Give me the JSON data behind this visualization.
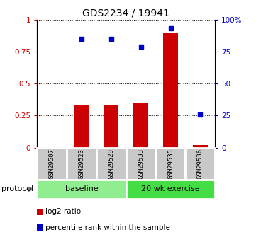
{
  "title": "GDS2234 / 19941",
  "samples": [
    "GSM29507",
    "GSM29523",
    "GSM29529",
    "GSM29533",
    "GSM29535",
    "GSM29536"
  ],
  "log2_ratio": [
    0.0,
    0.33,
    0.33,
    0.35,
    0.9,
    0.02
  ],
  "percentile_rank": [
    null,
    0.85,
    0.85,
    0.79,
    0.93,
    0.26
  ],
  "baseline_color": "#90EE90",
  "exercise_color": "#44DD44",
  "bar_color": "#CC0000",
  "dot_color": "#0000CC",
  "sample_box_color": "#C8C8C8",
  "left_yticks": [
    0,
    0.25,
    0.5,
    0.75,
    1.0
  ],
  "right_yticks": [
    0,
    25,
    50,
    75,
    100
  ],
  "legend_items": [
    {
      "label": "log2 ratio",
      "color": "#CC0000"
    },
    {
      "label": "percentile rank within the sample",
      "color": "#0000CC"
    }
  ],
  "background_color": "#ffffff"
}
